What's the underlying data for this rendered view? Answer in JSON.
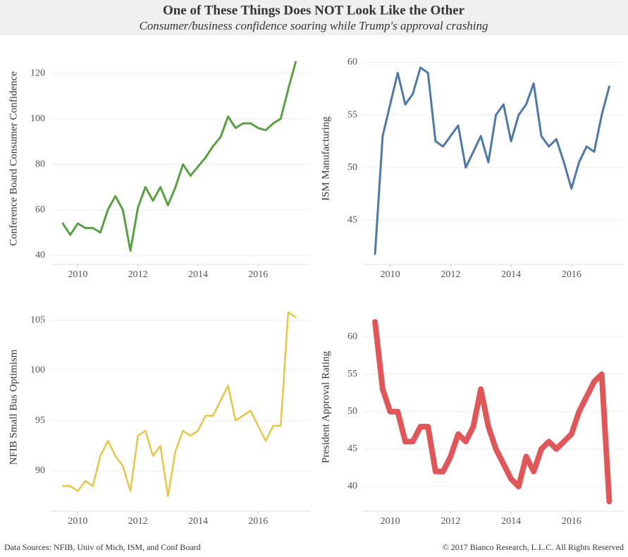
{
  "title": "One of These Things Does NOT Look Like the Other",
  "subtitle": "Consumer/business confidence soaring while Trump's approval crashing",
  "source": "Data Sources: NFIB, Univ of Mich, ISM, and Conf Board",
  "copyright": "© 2017 Bianco Research, L.L.C. All Rights Reserved",
  "chart_data": [
    {
      "type": "line",
      "y_label": "Conference Board Consumer Confidence",
      "color": "#59a044",
      "grid": true,
      "x": [
        2009.5,
        2009.75,
        2010,
        2010.25,
        2010.5,
        2010.75,
        2011,
        2011.25,
        2011.5,
        2011.75,
        2012,
        2012.25,
        2012.5,
        2012.75,
        2013,
        2013.25,
        2013.5,
        2013.75,
        2014,
        2014.25,
        2014.5,
        2014.75,
        2015,
        2015.25,
        2015.5,
        2015.75,
        2016,
        2016.25,
        2016.5,
        2016.75,
        2017,
        2017.25
      ],
      "values": [
        54,
        49,
        54,
        52,
        52,
        50,
        60,
        66,
        60,
        42,
        61,
        70,
        64,
        70,
        62,
        70,
        80,
        75,
        79,
        83,
        88,
        92,
        101,
        96,
        98,
        98,
        96,
        95,
        98,
        100,
        113,
        125
      ],
      "xlim": [
        2009.1,
        2017.73
      ],
      "xticks": [
        2010,
        2012,
        2014,
        2016
      ],
      "ylim": [
        36,
        129
      ],
      "yticks": [
        40,
        60,
        80,
        100,
        120
      ]
    },
    {
      "type": "line",
      "y_label": "ISM Manufacturing",
      "color": "#4e79a7",
      "grid": true,
      "x": [
        2009.5,
        2009.75,
        2010,
        2010.25,
        2010.5,
        2010.75,
        2011,
        2011.25,
        2011.5,
        2011.75,
        2012,
        2012.25,
        2012.5,
        2012.75,
        2013,
        2013.25,
        2013.5,
        2013.75,
        2014,
        2014.25,
        2014.5,
        2014.75,
        2015,
        2015.25,
        2015.5,
        2015.75,
        2016,
        2016.25,
        2016.5,
        2016.75,
        2017,
        2017.25
      ],
      "values": [
        41.8,
        53,
        56,
        59,
        56,
        57,
        59.5,
        59,
        52.5,
        52,
        53,
        54,
        50,
        51.5,
        53,
        50.5,
        55,
        56,
        52.5,
        55,
        56,
        58,
        53,
        52,
        52.7,
        50.5,
        48,
        50.5,
        52,
        51.5,
        55,
        57.7
      ],
      "xlim": [
        2009.1,
        2017.73
      ],
      "xticks": [
        2010,
        2012,
        2014,
        2016
      ],
      "ylim": [
        40.8,
        60.9
      ],
      "yticks": [
        45,
        50,
        55,
        60
      ]
    },
    {
      "type": "line",
      "y_label": "NFIB Small Bus Optimism",
      "color": "#e8c547",
      "grid": true,
      "x": [
        2009.5,
        2009.75,
        2010,
        2010.25,
        2010.5,
        2010.75,
        2011,
        2011.25,
        2011.5,
        2011.75,
        2012,
        2012.25,
        2012.5,
        2012.75,
        2013,
        2013.25,
        2013.5,
        2013.75,
        2014,
        2014.25,
        2014.5,
        2014.75,
        2015,
        2015.25,
        2015.5,
        2015.75,
        2016,
        2016.25,
        2016.5,
        2016.75,
        2017,
        2017.25
      ],
      "values": [
        88.5,
        88.5,
        88,
        89,
        88.5,
        91.5,
        93,
        91.5,
        90.5,
        88,
        93.5,
        94,
        91.5,
        92.5,
        87.5,
        92,
        94,
        93.5,
        94,
        95.5,
        95.5,
        97,
        98.5,
        95,
        95.5,
        96,
        94.5,
        93,
        94.5,
        94.5,
        105.8,
        105.3
      ],
      "xlim": [
        2009.1,
        2017.73
      ],
      "xticks": [
        2010,
        2012,
        2014,
        2016
      ],
      "ylim": [
        86,
        106.7
      ],
      "yticks": [
        90,
        95,
        100,
        105
      ]
    },
    {
      "type": "line",
      "y_label": "President Approval Rating",
      "color": "#e15759",
      "grid": true,
      "x": [
        2009.5,
        2009.75,
        2010,
        2010.25,
        2010.5,
        2010.75,
        2011,
        2011.25,
        2011.5,
        2011.75,
        2012,
        2012.25,
        2012.5,
        2012.75,
        2013,
        2013.25,
        2013.5,
        2013.75,
        2014,
        2014.25,
        2014.5,
        2014.75,
        2015,
        2015.25,
        2015.5,
        2015.75,
        2016,
        2016.25,
        2016.5,
        2016.75,
        2017,
        2017.25
      ],
      "values": [
        62,
        53,
        50,
        50,
        46,
        46,
        48,
        48,
        42,
        42,
        44,
        47,
        46,
        48,
        53,
        48,
        45,
        43,
        41,
        40,
        44,
        42,
        45,
        46,
        45,
        46,
        47,
        50,
        52,
        54,
        55,
        38
      ],
      "xlim": [
        2009.1,
        2017.73
      ],
      "xticks": [
        2010,
        2012,
        2014,
        2016
      ],
      "ylim": [
        36.7,
        64.5
      ],
      "yticks": [
        40,
        45,
        50,
        55,
        60
      ]
    }
  ]
}
